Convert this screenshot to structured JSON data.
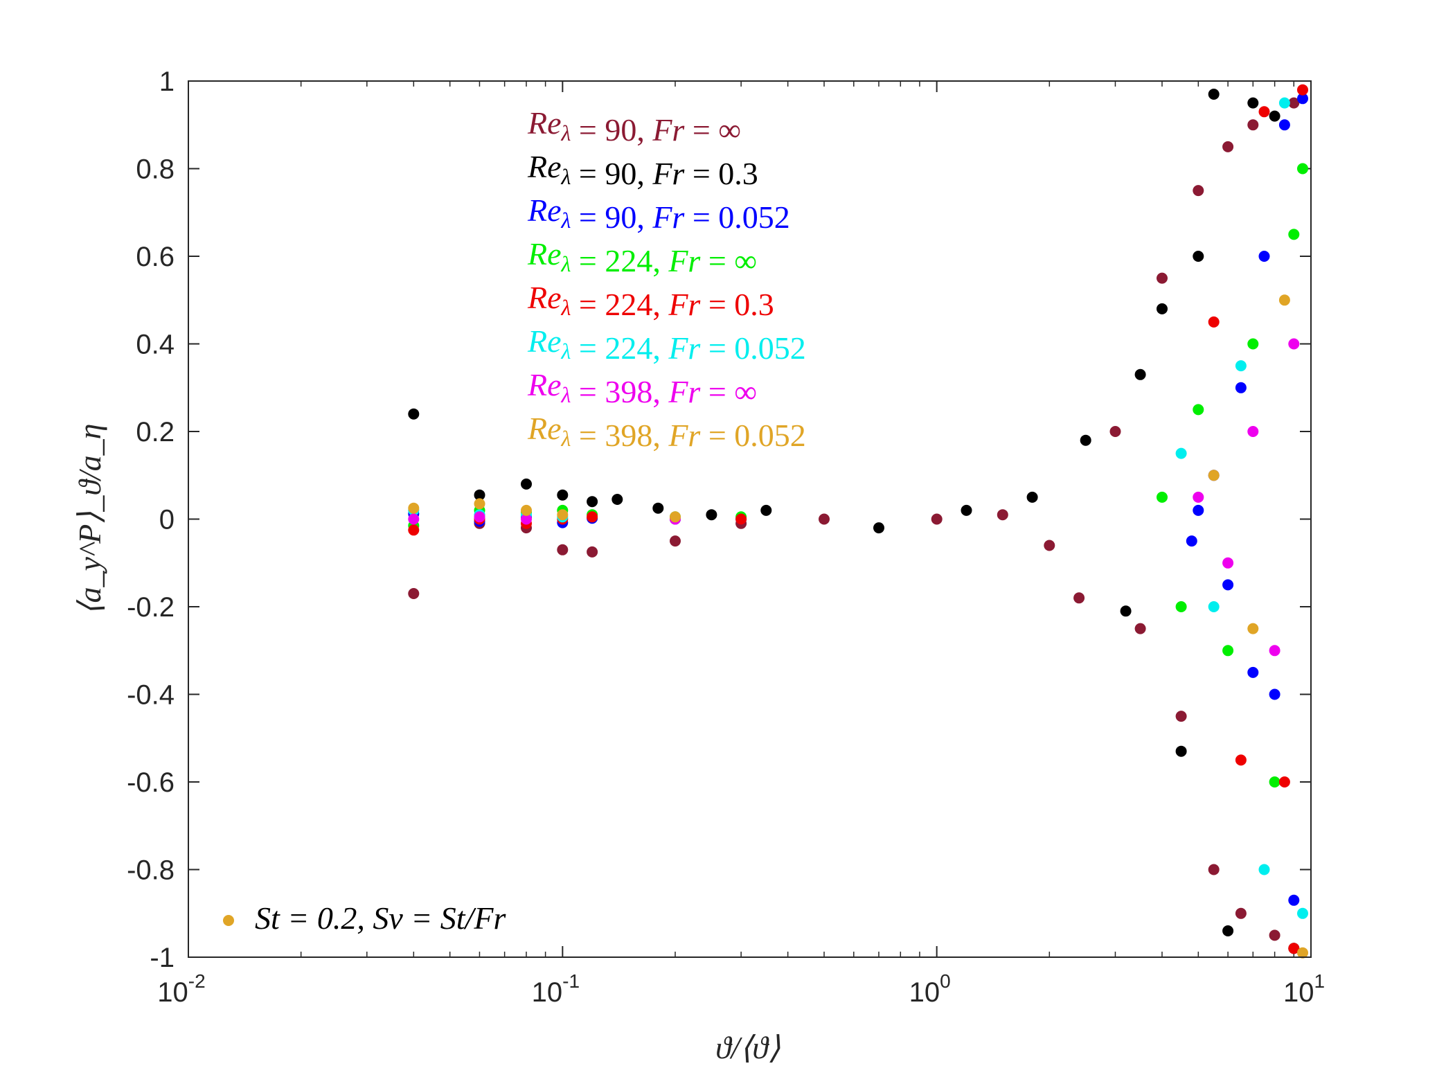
{
  "chart_data": {
    "type": "scatter",
    "title": "",
    "xlabel": "ϑ/⟨ϑ⟩",
    "ylabel": "⟨a_y^P⟩_ϑ/a_η",
    "xscale": "log",
    "xlim": [
      0.01,
      10
    ],
    "ylim": [
      -1,
      1
    ],
    "x_ticks": [
      {
        "base": "10",
        "exp": "-2"
      },
      {
        "base": "10",
        "exp": "-1"
      },
      {
        "base": "10",
        "exp": "0"
      },
      {
        "base": "10",
        "exp": "1"
      }
    ],
    "y_ticks": [
      "1",
      "0.8",
      "0.6",
      "0.4",
      "0.2",
      "0",
      "-0.2",
      "-0.4",
      "-0.6",
      "-0.8",
      "-1"
    ],
    "annotation": "St = 0.2, Sv = St/Fr",
    "annotation_color": "#E0A526",
    "legend_position": "top-left",
    "series": [
      {
        "name": "Re_λ = 90, Fr = ∞",
        "label_re": "90",
        "label_fr": "∞",
        "color": "#8B1A33",
        "x": [
          0.04,
          0.06,
          0.08,
          0.1,
          0.12,
          0.2,
          0.3,
          0.5,
          1.0,
          1.5,
          2.0,
          2.4,
          3.0,
          3.5,
          4.0,
          4.5,
          5.0,
          5.5,
          6.0,
          6.5,
          7.0,
          8.0,
          9.0
        ],
        "y": [
          -0.17,
          -0.01,
          -0.02,
          -0.07,
          -0.075,
          -0.05,
          -0.01,
          0.0,
          0.0,
          0.01,
          -0.06,
          -0.18,
          0.2,
          -0.25,
          0.55,
          -0.45,
          0.75,
          -0.8,
          0.85,
          -0.9,
          0.9,
          -0.95,
          0.95
        ]
      },
      {
        "name": "Re_λ = 90, Fr = 0.3",
        "label_re": "90",
        "label_fr": "0.3",
        "color": "#000000",
        "x": [
          0.04,
          0.06,
          0.08,
          0.1,
          0.12,
          0.14,
          0.18,
          0.25,
          0.35,
          0.7,
          1.2,
          1.8,
          2.5,
          3.2,
          3.5,
          4.0,
          4.5,
          5.0,
          5.5,
          6.0,
          7.0,
          8.0,
          9.0
        ],
        "y": [
          0.24,
          0.055,
          0.08,
          0.055,
          0.04,
          0.045,
          0.025,
          0.01,
          0.02,
          -0.02,
          0.02,
          0.05,
          0.18,
          -0.21,
          0.33,
          0.48,
          -0.53,
          0.6,
          0.97,
          -0.94,
          0.95,
          0.92,
          -0.98
        ]
      },
      {
        "name": "Re_λ = 90, Fr = 0.052",
        "label_re": "90",
        "label_fr": "0.052",
        "color": "#0000FF",
        "x": [
          0.04,
          0.06,
          0.08,
          0.1,
          0.12,
          0.2,
          0.3,
          4.8,
          5.0,
          5.5,
          6.0,
          6.5,
          7.0,
          7.5,
          8.0,
          8.5,
          9.0,
          9.5
        ],
        "y": [
          0.012,
          -0.005,
          0.005,
          -0.008,
          0.002,
          0.0,
          0.0,
          -0.05,
          0.02,
          0.1,
          -0.15,
          0.3,
          -0.35,
          0.6,
          -0.4,
          0.9,
          -0.87,
          0.96
        ]
      },
      {
        "name": "Re_λ = 224, Fr = ∞",
        "label_re": "224",
        "label_fr": "∞",
        "color": "#00EE00",
        "x": [
          0.04,
          0.06,
          0.08,
          0.1,
          0.12,
          0.2,
          0.3,
          4.0,
          4.5,
          5.0,
          6.0,
          7.0,
          8.0,
          9.0,
          9.5
        ],
        "y": [
          -0.015,
          0.02,
          0.015,
          0.02,
          0.01,
          0.005,
          0.005,
          0.05,
          -0.2,
          0.25,
          -0.3,
          0.4,
          -0.6,
          0.65,
          0.8
        ]
      },
      {
        "name": "Re_λ = 224, Fr = 0.3",
        "label_re": "224",
        "label_fr": "0.3",
        "color": "#EE0000",
        "x": [
          0.04,
          0.06,
          0.08,
          0.1,
          0.12,
          0.2,
          0.3,
          5.5,
          6.5,
          7.5,
          8.5,
          9.0,
          9.5
        ],
        "y": [
          -0.025,
          0.0,
          -0.01,
          0.0,
          0.005,
          0.0,
          0.0,
          0.45,
          -0.55,
          0.93,
          -0.6,
          -0.98,
          0.98
        ]
      },
      {
        "name": "Re_λ = 224, Fr = 0.052",
        "label_re": "224",
        "label_fr": "0.052",
        "color": "#00EEEE",
        "x": [
          0.04,
          0.06,
          0.08,
          0.1,
          0.2,
          4.5,
          5.5,
          6.5,
          7.5,
          8.5,
          9.5
        ],
        "y": [
          0.02,
          0.01,
          0.01,
          0.005,
          0.0,
          0.15,
          -0.2,
          0.35,
          -0.8,
          0.95,
          -0.9
        ]
      },
      {
        "name": "Re_λ = 398, Fr = ∞",
        "label_re": "398",
        "label_fr": "∞",
        "color": "#EE00EE",
        "x": [
          0.04,
          0.06,
          0.08,
          0.2,
          5.0,
          6.0,
          7.0,
          8.0,
          9.0
        ],
        "y": [
          0.0,
          0.005,
          0.0,
          0.0,
          0.05,
          -0.1,
          0.2,
          -0.3,
          0.4
        ]
      },
      {
        "name": "Re_λ = 398, Fr = 0.052",
        "label_re": "398",
        "label_fr": "0.052",
        "color": "#E0A526",
        "x": [
          0.04,
          0.06,
          0.08,
          0.1,
          0.2,
          5.5,
          7.0,
          8.5,
          9.5
        ],
        "y": [
          0.025,
          0.035,
          0.02,
          0.01,
          0.005,
          0.1,
          -0.25,
          0.5,
          -0.99
        ]
      }
    ]
  }
}
